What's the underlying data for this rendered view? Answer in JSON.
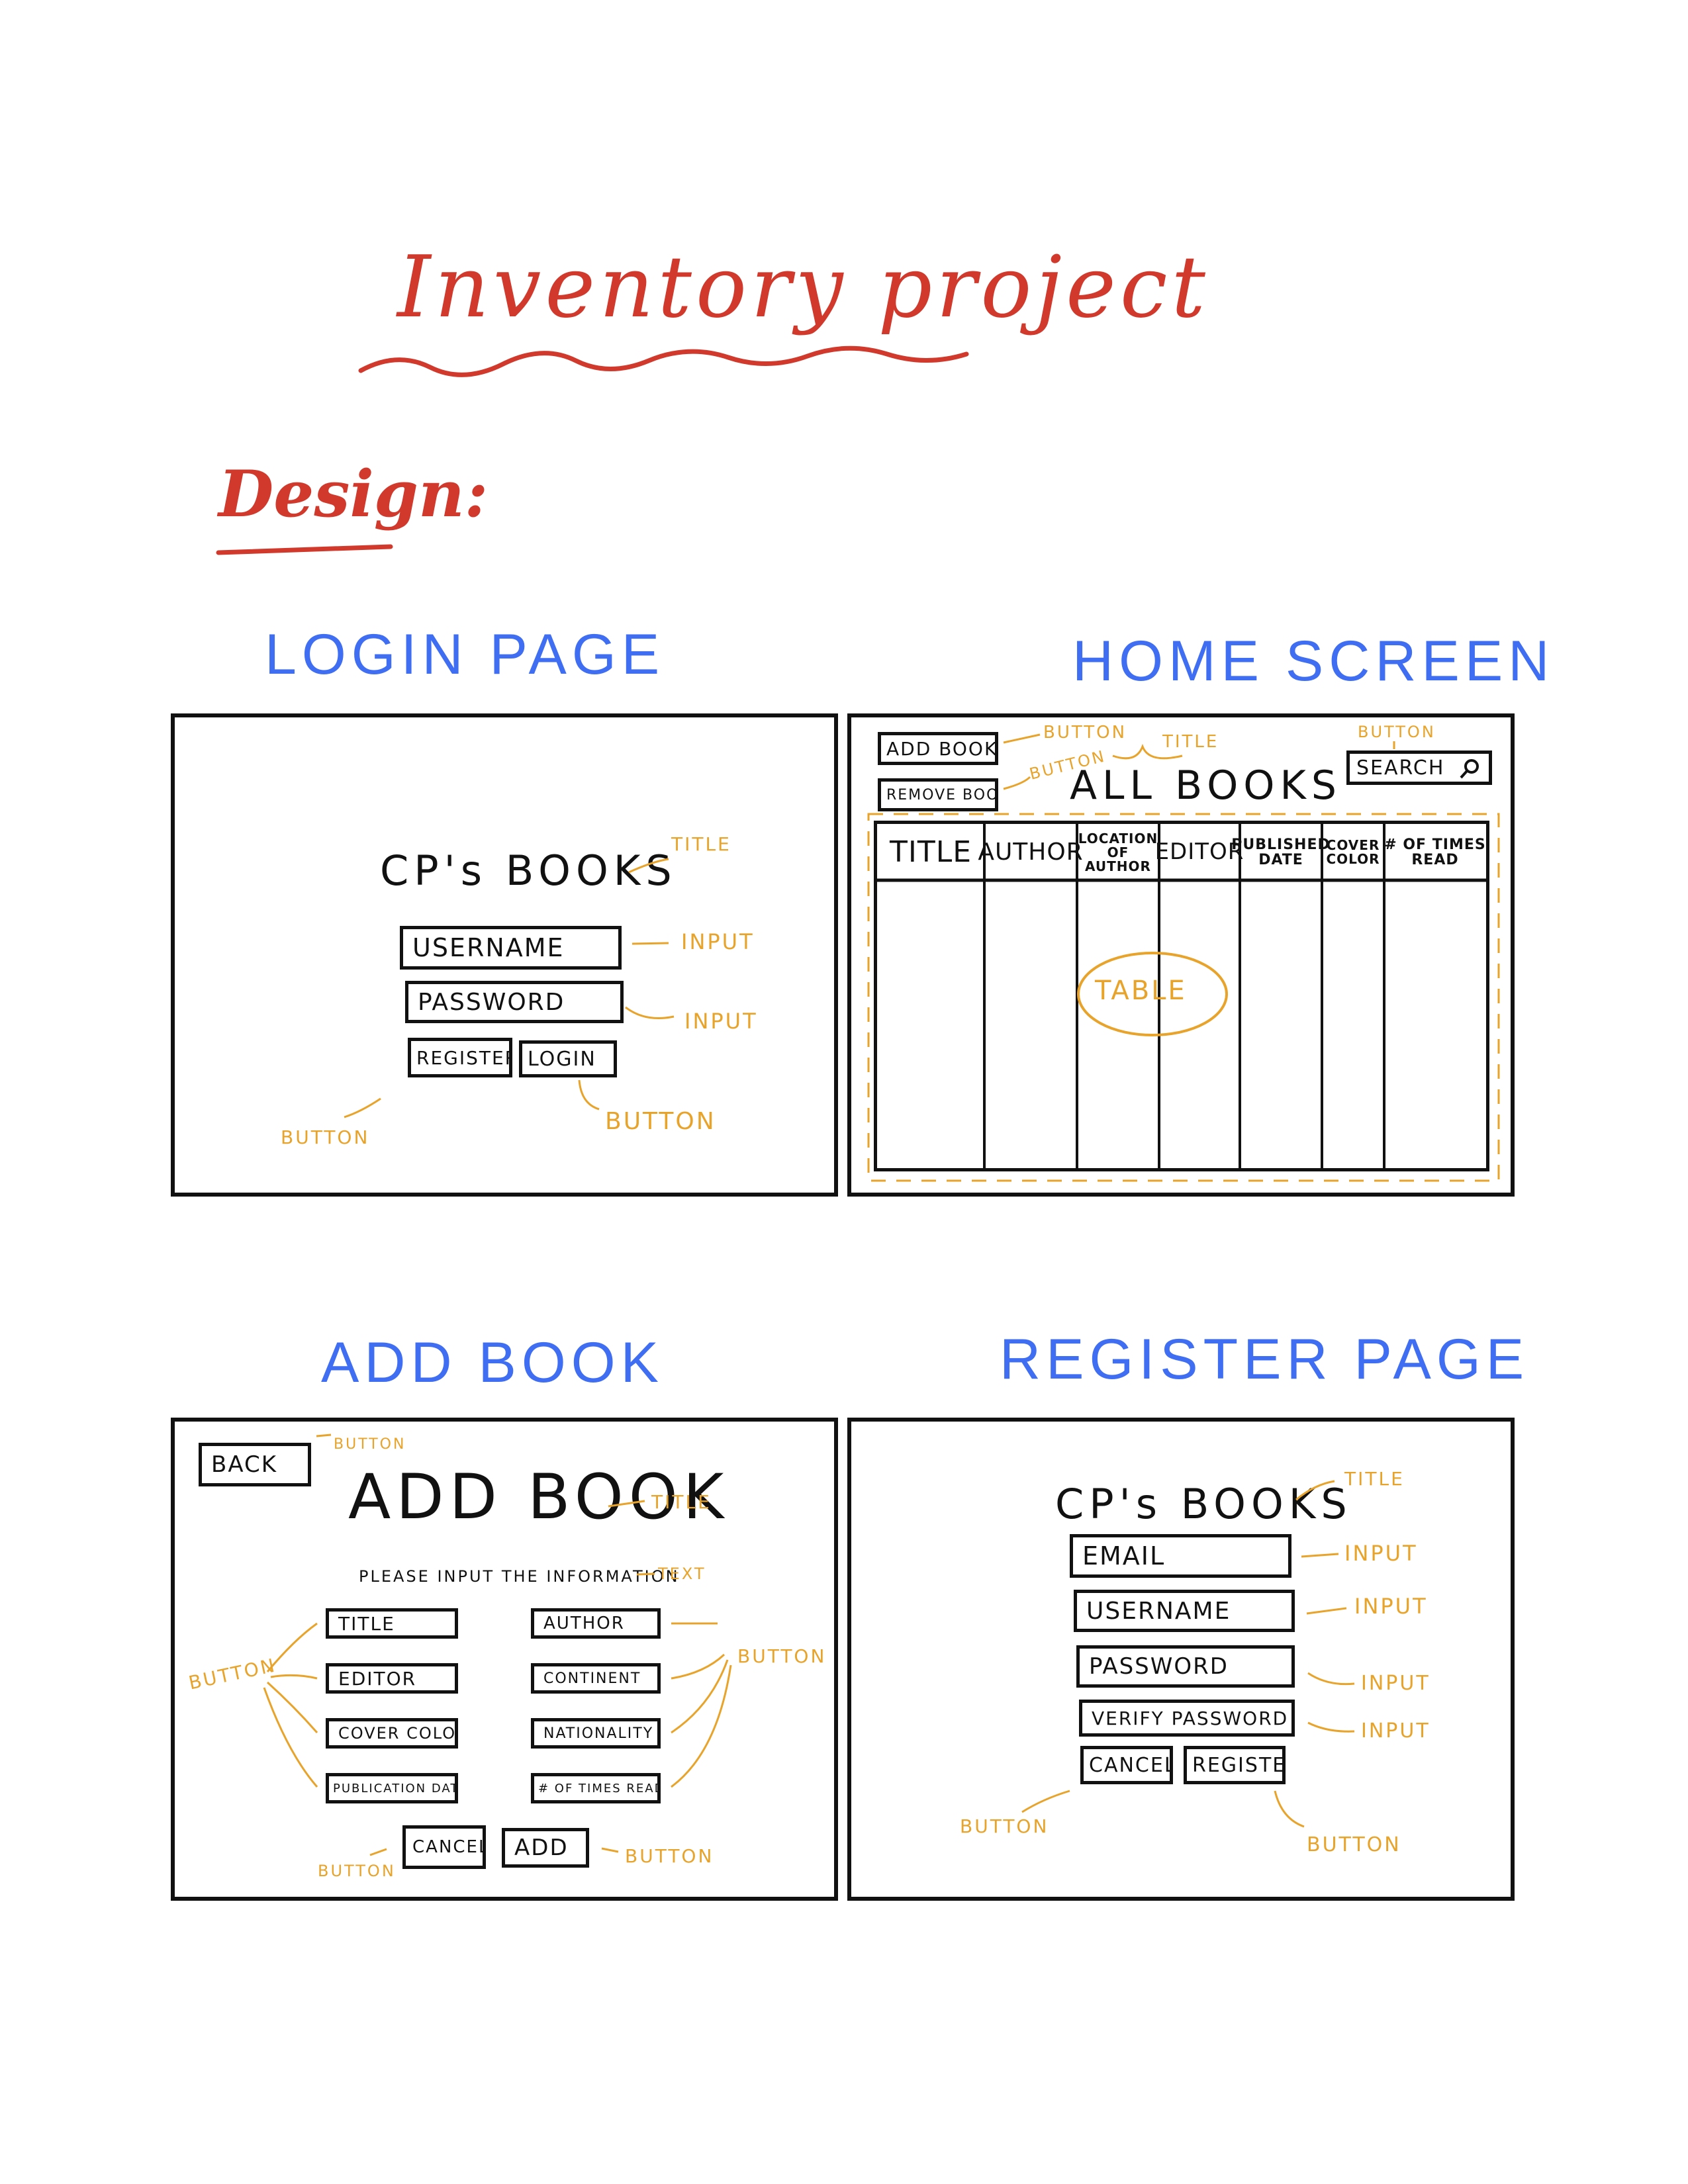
{
  "header": {
    "title": "Inventory project",
    "subtitle": "Design:"
  },
  "colors": {
    "accent_red": "#d0392b",
    "label_blue": "#3f6ef2",
    "annotation_orange": "#e8a32a",
    "ink": "#111111"
  },
  "login": {
    "label": "LOGIN PAGE",
    "title": "CP's BOOKS",
    "username": "USERNAME",
    "password": "PASSWORD",
    "register": "REGISTER",
    "login": "LOGIN",
    "ann_title": "TITLE",
    "ann_input1": "INPUT",
    "ann_input2": "INPUT",
    "ann_button1": "BUTTON",
    "ann_button2": "BUTTON"
  },
  "home": {
    "label": "HOME SCREEN",
    "add_book": "ADD BOOK",
    "remove_book": "REMOVE BOOK",
    "title": "ALL BOOKS",
    "search": "SEARCH",
    "ann_button1": "BUTTON",
    "ann_button2": "BUTTON",
    "ann_title": "TITLE",
    "ann_button3": "BUTTON",
    "table_label": "TABLE",
    "columns": [
      "TITLE",
      "AUTHOR",
      "LOCATION OF AUTHOR",
      "EDITOR",
      "PUBLISHED DATE",
      "COVER COLOR",
      "# OF TIMES READ"
    ]
  },
  "addbook": {
    "label": "ADD BOOK",
    "back": "BACK",
    "title": "ADD BOOK",
    "instructions": "PLEASE INPUT THE INFORMATION",
    "ann_back": "BUTTON",
    "ann_title": "TITLE",
    "ann_text": "TEXT",
    "ann_left": "BUTTON",
    "ann_right": "BUTTON",
    "ann_cancel": "BUTTON",
    "ann_add": "BUTTON",
    "fields_left": [
      "TITLE",
      "EDITOR",
      "COVER COLOR",
      "PUBLICATION DATE"
    ],
    "fields_right": [
      "AUTHOR",
      "CONTINENT",
      "NATIONALITY",
      "# OF TIMES READ"
    ],
    "cancel": "CANCEL",
    "add": "ADD"
  },
  "register": {
    "label": "REGISTER PAGE",
    "title": "CP's BOOKS",
    "email": "EMAIL",
    "username": "USERNAME",
    "password": "PASSWORD",
    "verify": "VERIFY PASSWORD",
    "cancel": "CANCEL",
    "register": "REGISTER",
    "ann_title": "TITLE",
    "ann_input1": "INPUT",
    "ann_input2": "INPUT",
    "ann_input3": "INPUT",
    "ann_input4": "INPUT",
    "ann_button1": "BUTTON",
    "ann_button2": "BUTTON"
  }
}
